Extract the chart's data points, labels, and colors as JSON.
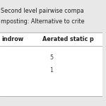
{
  "title_line1": "Second level pairwise compa",
  "title_line2": "mposting: Alternative to crite",
  "col_headers": [
    "indrow",
    "Aerated static p"
  ],
  "rows": [
    [
      "",
      "5"
    ],
    [
      "",
      "1"
    ]
  ],
  "title_bg_color": "#e8e8e8",
  "table_bg_color": "#ffffff",
  "outer_bg_color": "#e8e8e8",
  "line_color": "#aaaaaa",
  "title_color": "#222222",
  "text_color": "#444444",
  "header_color": "#222222",
  "font_size": 5.8,
  "title_font_size": 5.8
}
